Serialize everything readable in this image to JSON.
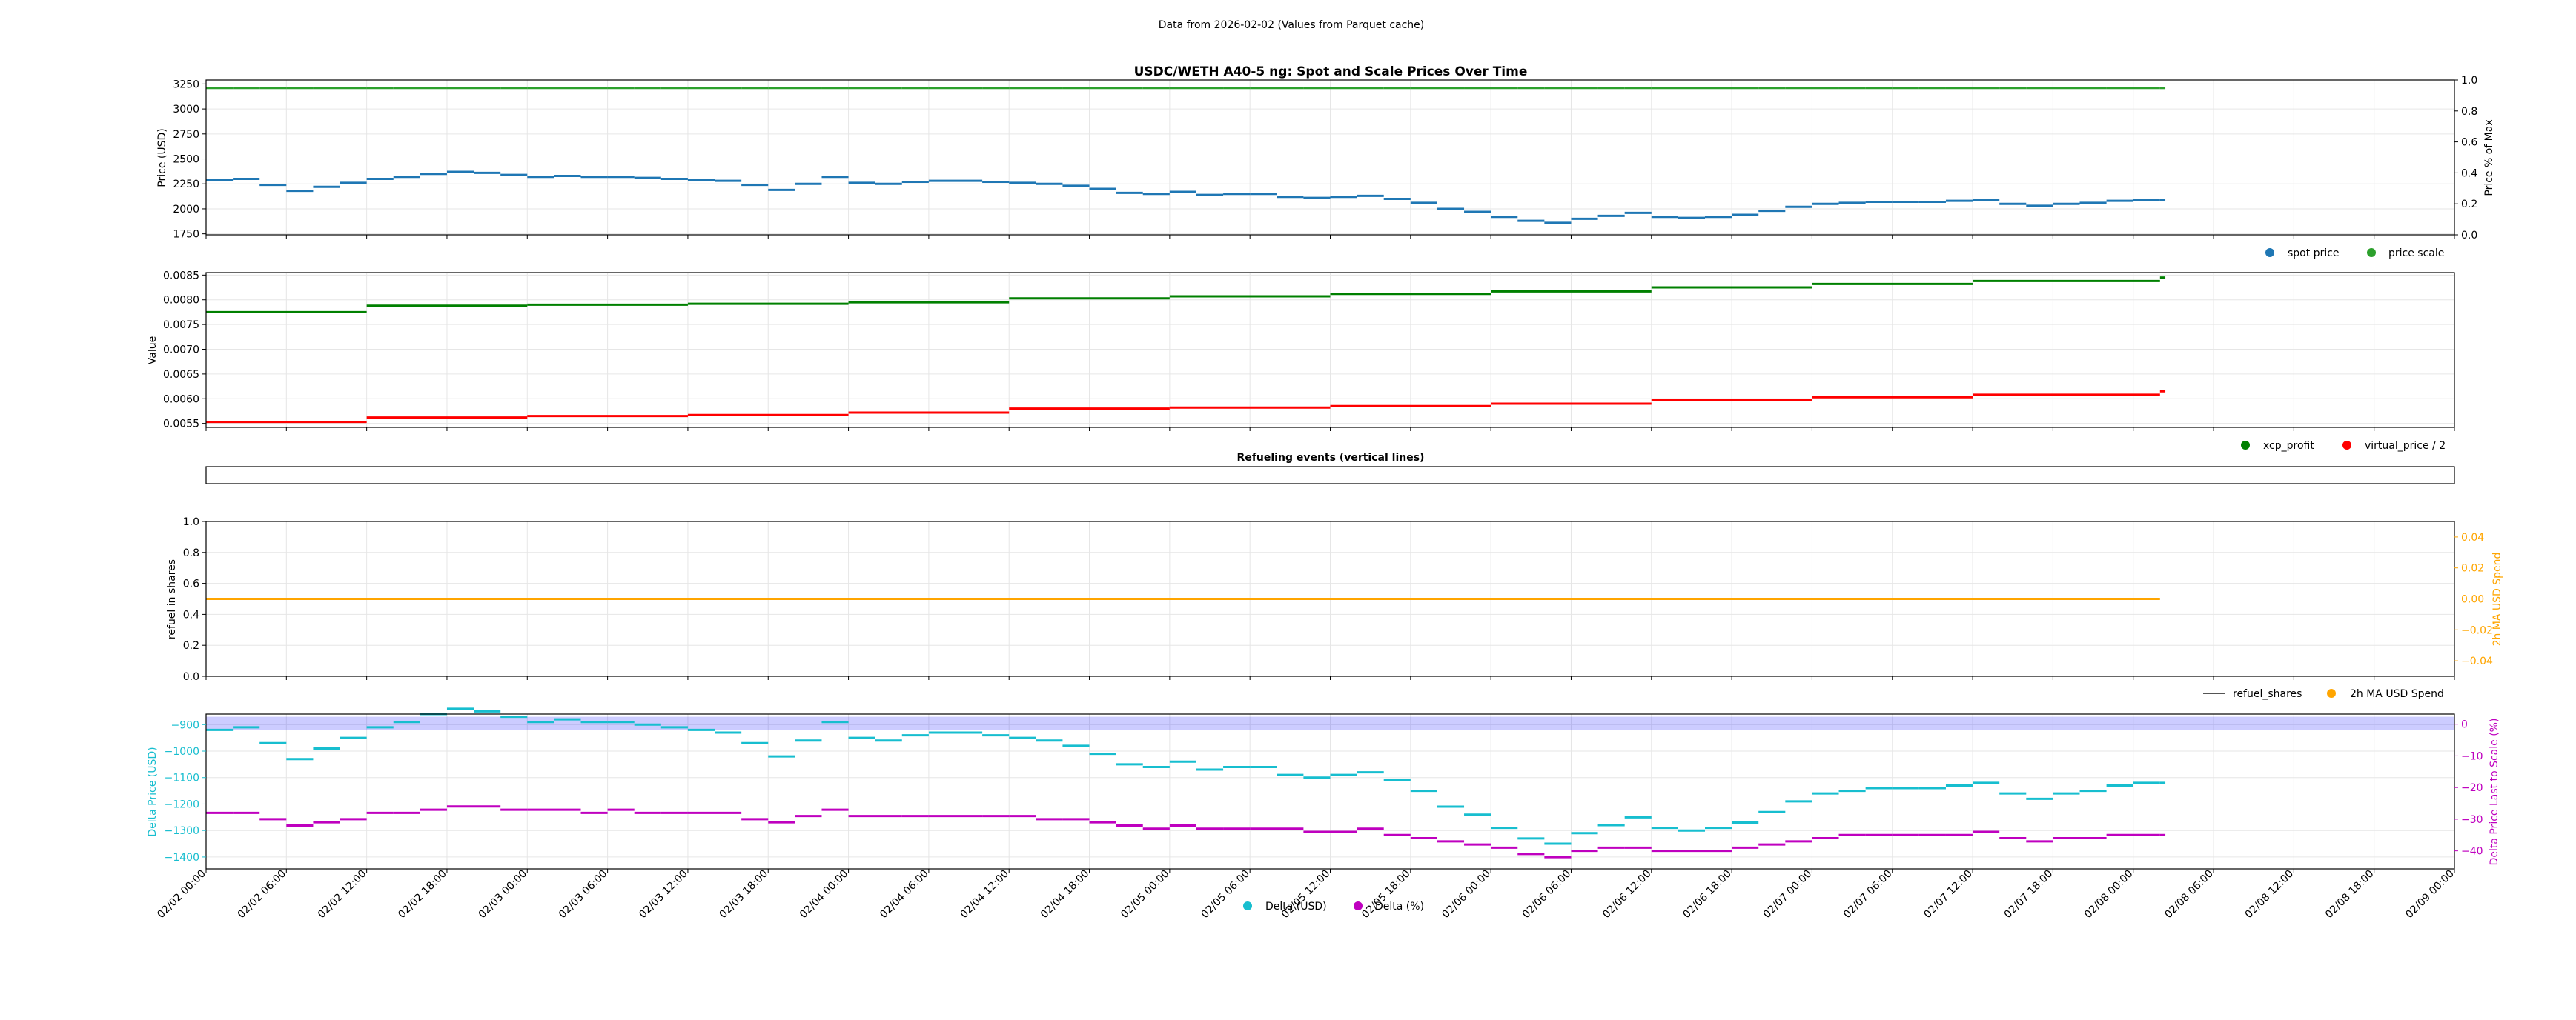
{
  "header": "Data from 2026-02-02 (Values from Parquet cache)",
  "colors": {
    "spot": "#1f77b4",
    "scale": "#2ca02c",
    "xcp": "#008000",
    "vp": "#ff0000",
    "refuel": "#555555",
    "usd_spend": "#ffa500",
    "delta_usd": "#17becf",
    "delta_pct": "#bf00bf",
    "band": "#0000ff",
    "grid": "#e6e6e6"
  },
  "x_ticks": [
    "02/02 00:00",
    "02/02 06:00",
    "02/02 12:00",
    "02/02 18:00",
    "02/03 00:00",
    "02/03 06:00",
    "02/03 12:00",
    "02/03 18:00",
    "02/04 00:00",
    "02/04 06:00",
    "02/04 12:00",
    "02/04 18:00",
    "02/05 00:00",
    "02/05 06:00",
    "02/05 12:00",
    "02/05 18:00",
    "02/06 00:00",
    "02/06 06:00",
    "02/06 12:00",
    "02/06 18:00",
    "02/07 00:00",
    "02/07 06:00",
    "02/07 12:00",
    "02/07 18:00",
    "02/08 00:00",
    "02/08 06:00",
    "02/08 12:00",
    "02/08 18:00",
    "02/09 00:00"
  ],
  "chart_data": [
    {
      "type": "scatter",
      "title": "USDC/WETH A40-5 ng: Spot and Scale Prices Over Time",
      "xlabel": "",
      "ylabel": "Price (USD)",
      "ylabel_right": "Price % of Max",
      "ylim": [
        1740,
        3290
      ],
      "yticks": [
        1750,
        2000,
        2250,
        2500,
        2750,
        3000,
        3250
      ],
      "ylim_right": [
        0,
        1
      ],
      "yticks_right": [
        "0.0",
        "0.2",
        "0.4",
        "0.6",
        "0.8",
        "1.0"
      ],
      "legend": "bottom-right",
      "x_hours": [
        0,
        2,
        4,
        6,
        8,
        10,
        12,
        14,
        16,
        18,
        20,
        22,
        24,
        26,
        28,
        30,
        32,
        34,
        36,
        38,
        40,
        42,
        44,
        46,
        48,
        50,
        52,
        54,
        56,
        58,
        60,
        62,
        64,
        66,
        68,
        70,
        72,
        74,
        76,
        78,
        80,
        82,
        84,
        86,
        88,
        90,
        92,
        94,
        96,
        98,
        100,
        102,
        104,
        106,
        108,
        110,
        112,
        114,
        116,
        118,
        120,
        122,
        124,
        126,
        128,
        130,
        132,
        134,
        136,
        138,
        140,
        142,
        144,
        146
      ],
      "series": [
        {
          "name": "spot price",
          "values": [
            2290,
            2300,
            2240,
            2180,
            2220,
            2260,
            2300,
            2320,
            2350,
            2370,
            2360,
            2340,
            2320,
            2330,
            2320,
            2320,
            2310,
            2300,
            2290,
            2280,
            2240,
            2190,
            2250,
            2320,
            2260,
            2250,
            2270,
            2280,
            2280,
            2270,
            2260,
            2250,
            2230,
            2200,
            2160,
            2150,
            2170,
            2140,
            2150,
            2150,
            2120,
            2110,
            2120,
            2130,
            2100,
            2060,
            2000,
            1970,
            1920,
            1880,
            1860,
            1900,
            1930,
            1960,
            1920,
            1910,
            1920,
            1940,
            1980,
            2020,
            2050,
            2060,
            2070,
            2070,
            2070,
            2080,
            2090,
            2050,
            2030,
            2050,
            2060,
            2080,
            2090,
            2090
          ]
        },
        {
          "name": "price scale",
          "values": [
            3210,
            3210,
            3210,
            3210,
            3210,
            3210,
            3210,
            3210,
            3210,
            3210,
            3210,
            3210,
            3210,
            3210,
            3210,
            3210,
            3210,
            3210,
            3210,
            3210,
            3210,
            3210,
            3210,
            3210,
            3210,
            3210,
            3210,
            3210,
            3210,
            3210,
            3210,
            3210,
            3210,
            3210,
            3210,
            3210,
            3210,
            3210,
            3210,
            3210,
            3210,
            3210,
            3210,
            3210,
            3210,
            3210,
            3210,
            3210,
            3210,
            3210,
            3210,
            3210,
            3210,
            3210,
            3210,
            3210,
            3210,
            3210,
            3210,
            3210,
            3210,
            3210,
            3210,
            3210,
            3210,
            3210,
            3210,
            3210,
            3210,
            3210,
            3210,
            3210,
            3210,
            3210
          ]
        }
      ]
    },
    {
      "type": "scatter",
      "ylabel": "Value",
      "ylim": [
        0.00542,
        0.00855
      ],
      "yticks": [
        "0.0055",
        "0.0060",
        "0.0065",
        "0.0070",
        "0.0075",
        "0.0080",
        "0.0085"
      ],
      "legend": "bottom-right",
      "x_hours": [
        0,
        12,
        24,
        36,
        48,
        60,
        72,
        84,
        96,
        108,
        120,
        132,
        146
      ],
      "series": [
        {
          "name": "xcp_profit",
          "values": [
            0.00775,
            0.00788,
            0.0079,
            0.00792,
            0.00795,
            0.00803,
            0.00807,
            0.00812,
            0.00817,
            0.00825,
            0.00832,
            0.00838,
            0.00845
          ]
        },
        {
          "name": "virtual_price / 2",
          "values": [
            0.00553,
            0.00562,
            0.00565,
            0.00567,
            0.00572,
            0.0058,
            0.00582,
            0.00585,
            0.0059,
            0.00597,
            0.00603,
            0.00608,
            0.00615
          ]
        }
      ]
    },
    {
      "type": "line",
      "title": "Refueling events (vertical lines)",
      "series": []
    },
    {
      "type": "line",
      "ylabel": "refuel in shares",
      "ylabel_right": "2h MA USD Spend",
      "ylim": [
        0,
        1
      ],
      "yticks": [
        "0.0",
        "0.2",
        "0.4",
        "0.6",
        "0.8",
        "1.0"
      ],
      "ylim_right": [
        -0.05,
        0.05
      ],
      "yticks_right": [
        "−0.04",
        "−0.02",
        "0.00",
        "0.02",
        "0.04"
      ],
      "legend": "bottom-right",
      "series": [
        {
          "name": "refuel_shares",
          "x_hours": [],
          "values": []
        },
        {
          "name": "2h MA USD Spend",
          "x_hours": [
            0,
            146
          ],
          "values": [
            0.0,
            0.0
          ]
        }
      ]
    },
    {
      "type": "scatter",
      "ylabel": "Delta Price (USD)",
      "ylabel_right": "Delta Price Last to Scale (%)",
      "ylim": [
        -1445,
        -860
      ],
      "yticks": [
        "−900",
        "−1000",
        "−1100",
        "−1200",
        "−1300",
        "−1400"
      ],
      "ylim_right": [
        -45.7,
        3.2
      ],
      "yticks_right": [
        "0",
        "−10",
        "−20",
        "−30",
        "−40"
      ],
      "band": [
        -870,
        -920
      ],
      "legend": "bottom-center",
      "x_hours": [
        0,
        2,
        4,
        6,
        8,
        10,
        12,
        14,
        16,
        18,
        20,
        22,
        24,
        26,
        28,
        30,
        32,
        34,
        36,
        38,
        40,
        42,
        44,
        46,
        48,
        50,
        52,
        54,
        56,
        58,
        60,
        62,
        64,
        66,
        68,
        70,
        72,
        74,
        76,
        78,
        80,
        82,
        84,
        86,
        88,
        90,
        92,
        94,
        96,
        98,
        100,
        102,
        104,
        106,
        108,
        110,
        112,
        114,
        116,
        118,
        120,
        122,
        124,
        126,
        128,
        130,
        132,
        134,
        136,
        138,
        140,
        142,
        144,
        146
      ],
      "series": [
        {
          "name": "Delta (USD)",
          "values": [
            -920,
            -910,
            -970,
            -1030,
            -990,
            -950,
            -910,
            -890,
            -860,
            -840,
            -850,
            -870,
            -890,
            -880,
            -890,
            -890,
            -900,
            -910,
            -920,
            -930,
            -970,
            -1020,
            -960,
            -890,
            -950,
            -960,
            -940,
            -930,
            -930,
            -940,
            -950,
            -960,
            -980,
            -1010,
            -1050,
            -1060,
            -1040,
            -1070,
            -1060,
            -1060,
            -1090,
            -1100,
            -1090,
            -1080,
            -1110,
            -1150,
            -1210,
            -1240,
            -1290,
            -1330,
            -1350,
            -1310,
            -1280,
            -1250,
            -1290,
            -1300,
            -1290,
            -1270,
            -1230,
            -1190,
            -1160,
            -1150,
            -1140,
            -1140,
            -1140,
            -1130,
            -1120,
            -1160,
            -1180,
            -1160,
            -1150,
            -1130,
            -1120,
            -1120
          ]
        },
        {
          "name": "Delta (%)",
          "values": [
            -28,
            -28,
            -30,
            -32,
            -31,
            -30,
            -28,
            -28,
            -27,
            -26,
            -26,
            -27,
            -27,
            -27,
            -28,
            -27,
            -28,
            -28,
            -28,
            -28,
            -30,
            -31,
            -29,
            -27,
            -29,
            -29,
            -29,
            -29,
            -29,
            -29,
            -29,
            -30,
            -30,
            -31,
            -32,
            -33,
            -32,
            -33,
            -33,
            -33,
            -33,
            -34,
            -34,
            -33,
            -35,
            -36,
            -37,
            -38,
            -39,
            -41,
            -42,
            -40,
            -39,
            -39,
            -40,
            -40,
            -40,
            -39,
            -38,
            -37,
            -36,
            -35,
            -35,
            -35,
            -35,
            -35,
            -34,
            -36,
            -37,
            -36,
            -36,
            -35,
            -35,
            -35
          ]
        }
      ]
    }
  ]
}
